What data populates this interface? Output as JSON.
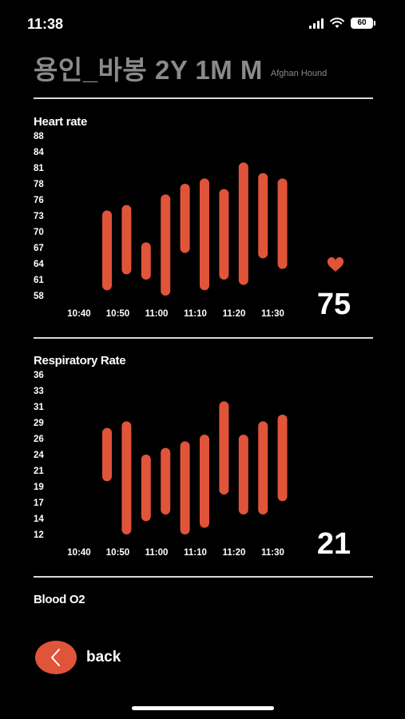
{
  "status_bar": {
    "time": "11:38",
    "battery": "60"
  },
  "header": {
    "title": "용인_바봉 2Y 1M M",
    "breed": "Afghan Hound"
  },
  "heart_rate": {
    "title": "Heart rate",
    "current_value": "75",
    "accent_color": "#e0543a",
    "icon": "heart-icon"
  },
  "respiratory_rate": {
    "title": "Respiratory Rate",
    "current_value": "21",
    "accent_color": "#e0543a"
  },
  "blood_o2": {
    "title": "Blood O2"
  },
  "back_button": {
    "label": "back",
    "icon": "chevron-left-icon"
  },
  "chart_data": [
    {
      "type": "bar",
      "subtype": "range",
      "title": "Heart rate",
      "x_ticks": [
        "10:40",
        "10:50",
        "11:00",
        "11:10",
        "11:20",
        "11:30"
      ],
      "y_ticks": [
        58,
        61,
        64,
        67,
        70,
        73,
        76,
        78,
        81,
        84,
        88
      ],
      "ylim": [
        58,
        88
      ],
      "bars": [
        {
          "low": 59,
          "high": 74
        },
        {
          "low": 62,
          "high": 75
        },
        {
          "low": 61,
          "high": 68
        },
        {
          "low": 58,
          "high": 77
        },
        {
          "low": 66,
          "high": 79
        },
        {
          "low": 59,
          "high": 80
        },
        {
          "low": 61,
          "high": 78
        },
        {
          "low": 60,
          "high": 83
        },
        {
          "low": 65,
          "high": 81
        },
        {
          "low": 63,
          "high": 80
        }
      ]
    },
    {
      "type": "bar",
      "subtype": "range",
      "title": "Respiratory Rate",
      "x_ticks": [
        "10:40",
        "10:50",
        "11:00",
        "11:10",
        "11:20",
        "11:30"
      ],
      "y_ticks": [
        12,
        14,
        17,
        19,
        21,
        24,
        26,
        29,
        31,
        33,
        36
      ],
      "ylim": [
        12,
        36
      ],
      "bars": [
        {
          "low": 20,
          "high": 28
        },
        {
          "low": 12,
          "high": 29
        },
        {
          "low": 14,
          "high": 24
        },
        {
          "low": 15,
          "high": 25
        },
        {
          "low": 12,
          "high": 26
        },
        {
          "low": 13,
          "high": 27
        },
        {
          "low": 18,
          "high": 32
        },
        {
          "low": 15,
          "high": 27
        },
        {
          "low": 15,
          "high": 29
        },
        {
          "low": 17,
          "high": 30
        }
      ]
    }
  ]
}
